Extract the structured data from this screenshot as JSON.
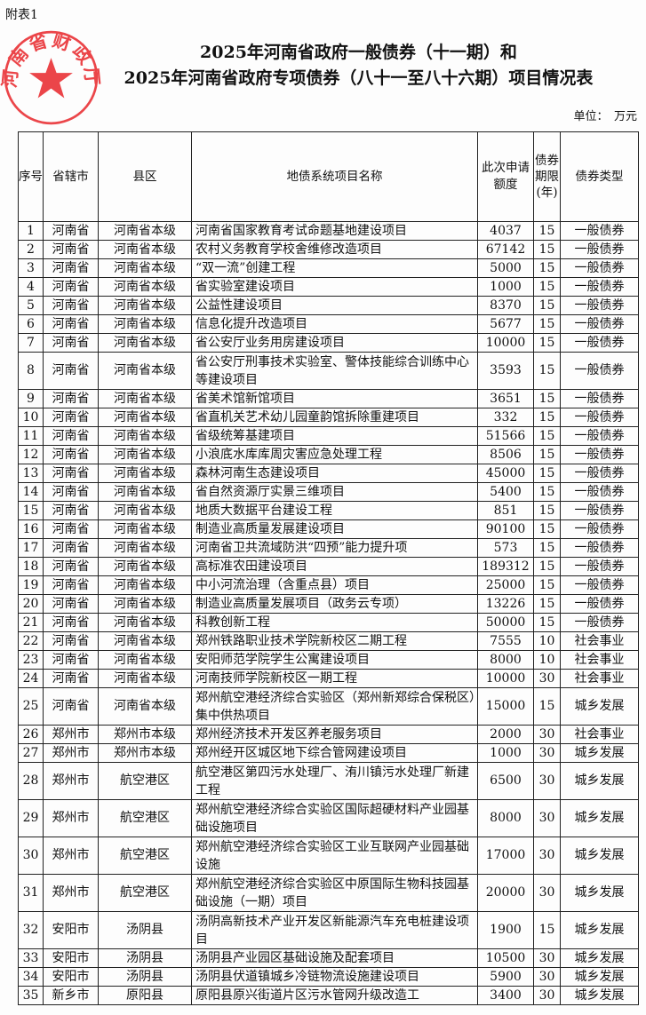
{
  "attachment_label": "附表1",
  "title_line1": "2025年河南省政府一般债券（十一期）和",
  "title_line2": "2025年河南省政府专项债券（八十一至八十六期）项目情况表",
  "unit": "单位：　万元",
  "stamp": {
    "text": "河南省财政厅",
    "color": "#e8262a"
  },
  "headers": [
    "序号",
    "省辖市",
    "县区",
    "地债系统项目名称",
    "此次申请额度",
    "债券期限(年)",
    "债券类型"
  ],
  "rows": [
    [
      "1",
      "河南省",
      "河南省本级",
      "河南省国家教育考试命题基地建设项目",
      "4037",
      "15",
      "一般债券"
    ],
    [
      "2",
      "河南省",
      "河南省本级",
      "农村义务教育学校舍维修改造项目",
      "67142",
      "15",
      "一般债券"
    ],
    [
      "3",
      "河南省",
      "河南省本级",
      "“双一流”创建工程",
      "5000",
      "15",
      "一般债券"
    ],
    [
      "4",
      "河南省",
      "河南省本级",
      "省实验室建设项目",
      "1000",
      "15",
      "一般债券"
    ],
    [
      "5",
      "河南省",
      "河南省本级",
      "公益性建设项目",
      "8370",
      "15",
      "一般债券"
    ],
    [
      "6",
      "河南省",
      "河南省本级",
      "信息化提升改造项目",
      "5677",
      "15",
      "一般债券"
    ],
    [
      "7",
      "河南省",
      "河南省本级",
      "省公安厅业务用房建设项目",
      "10000",
      "15",
      "一般债券"
    ],
    [
      "8",
      "河南省",
      "河南省本级",
      "省公安厅刑事技术实验室、警体技能综合训练中心等建设项目",
      "3593",
      "15",
      "一般债券"
    ],
    [
      "9",
      "河南省",
      "河南省本级",
      "省美术馆新馆项目",
      "3651",
      "15",
      "一般债券"
    ],
    [
      "10",
      "河南省",
      "河南省本级",
      "省直机关艺术幼儿园童韵馆拆除重建项目",
      "332",
      "15",
      "一般债券"
    ],
    [
      "11",
      "河南省",
      "河南省本级",
      "省级统筹基建项目",
      "51566",
      "15",
      "一般债券"
    ],
    [
      "12",
      "河南省",
      "河南省本级",
      "小浪底水库库周灾害应急处理工程",
      "8506",
      "15",
      "一般债券"
    ],
    [
      "13",
      "河南省",
      "河南省本级",
      "森林河南生态建设项目",
      "45000",
      "15",
      "一般债券"
    ],
    [
      "14",
      "河南省",
      "河南省本级",
      "省自然资源厅实景三维项目",
      "5400",
      "15",
      "一般债券"
    ],
    [
      "15",
      "河南省",
      "河南省本级",
      "地质大数据平台建设工程",
      "851",
      "15",
      "一般债券"
    ],
    [
      "16",
      "河南省",
      "河南省本级",
      "制造业高质量发展建设项目",
      "90100",
      "15",
      "一般债券"
    ],
    [
      "17",
      "河南省",
      "河南省本级",
      "河南省卫共流域防洪“四预”能力提升项",
      "573",
      "15",
      "一般债券"
    ],
    [
      "18",
      "河南省",
      "河南省本级",
      "高标准农田建设项目",
      "189312",
      "15",
      "一般债券"
    ],
    [
      "19",
      "河南省",
      "河南省本级",
      "中小河流治理（含重点县）项目",
      "25000",
      "15",
      "一般债券"
    ],
    [
      "20",
      "河南省",
      "河南省本级",
      "制造业高质量发展项目（政务云专项）",
      "13226",
      "15",
      "一般债券"
    ],
    [
      "21",
      "河南省",
      "河南省本级",
      "科教创新工程",
      "50000",
      "15",
      "一般债券"
    ],
    [
      "22",
      "河南省",
      "河南省本级",
      "郑州铁路职业技术学院新校区二期工程",
      "7555",
      "10",
      "社会事业"
    ],
    [
      "23",
      "河南省",
      "河南省本级",
      "安阳师范学院学生公寓建设项目",
      "8000",
      "10",
      "社会事业"
    ],
    [
      "24",
      "河南省",
      "河南省本级",
      "河南技师学院新校区一期工程",
      "10000",
      "30",
      "社会事业"
    ],
    [
      "25",
      "河南省",
      "河南省本级",
      "郑州航空港经济综合实验区（郑州新郑综合保税区）集中供热项目",
      "15000",
      "15",
      "城乡发展"
    ],
    [
      "26",
      "郑州市",
      "郑州市本级",
      "郑州经济技术开发区养老服务项目",
      "2000",
      "30",
      "社会事业"
    ],
    [
      "27",
      "郑州市",
      "郑州市本级",
      "郑州经开区城区地下综合管网建设项目",
      "1000",
      "30",
      "城乡发展"
    ],
    [
      "28",
      "郑州市",
      "航空港区",
      "航空港区第四污水处理厂、洧川镇污水处理厂新建工程",
      "6500",
      "30",
      "城乡发展"
    ],
    [
      "29",
      "郑州市",
      "航空港区",
      "郑州航空港经济综合实验区国际超硬材料产业园基础设施项目",
      "8000",
      "30",
      "城乡发展"
    ],
    [
      "30",
      "郑州市",
      "航空港区",
      "郑州航空港经济综合实验区工业互联网产业园基础设施",
      "17000",
      "30",
      "城乡发展"
    ],
    [
      "31",
      "郑州市",
      "航空港区",
      "郑州航空港经济综合实验区中原国际生物科技园基础设施（一期）项目",
      "20000",
      "30",
      "城乡发展"
    ],
    [
      "32",
      "安阳市",
      "汤阴县",
      "汤阴高新技术产业开发区新能源汽车充电桩建设项目",
      "1900",
      "15",
      "城乡发展"
    ],
    [
      "33",
      "安阳市",
      "汤阴县",
      "汤阴县产业园区基础设施及配套项目",
      "10500",
      "30",
      "城乡发展"
    ],
    [
      "34",
      "安阳市",
      "汤阴县",
      "汤阴县伏道镇城乡冷链物流设施建设项目",
      "5900",
      "30",
      "城乡发展"
    ],
    [
      "35",
      "新乡市",
      "原阳县",
      "原阳县原兴街道片区污水管网升级改造工",
      "3400",
      "30",
      "城乡发展"
    ]
  ]
}
